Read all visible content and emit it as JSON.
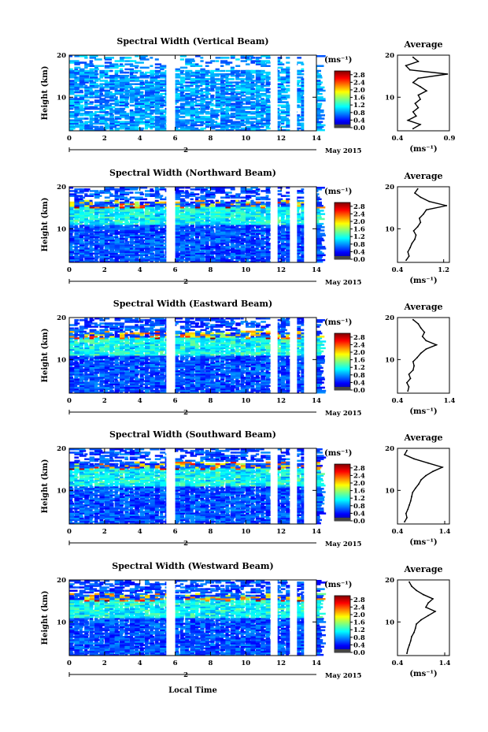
{
  "figure": {
    "xlabel": "Local Time",
    "date_label": "May 2015",
    "date_marker": "2"
  },
  "chart_data": [
    {
      "type": "heatmap",
      "title": "Spectral Width (Vertical Beam)",
      "xlabel": "Local Time",
      "ylabel": "Height (km)",
      "xlim": [
        0,
        14
      ],
      "ylim": [
        2,
        20
      ],
      "x_ticks": [
        0,
        2,
        4,
        6,
        8,
        10,
        12,
        14
      ],
      "y_ticks": [
        10,
        20
      ],
      "colorbar": {
        "label": "(ms⁻¹)",
        "ticks": [
          0.0,
          0.4,
          0.8,
          1.2,
          1.6,
          2.0,
          2.4,
          2.8
        ]
      },
      "data_gaps_hours": [
        [
          5.5,
          6.0
        ],
        [
          11.4,
          11.8
        ],
        [
          12.5,
          12.9
        ],
        [
          13.3,
          14.0
        ]
      ],
      "average_profile": {
        "title": "Average",
        "xlabel": "(ms⁻¹)",
        "xlim": [
          0.4,
          0.9
        ],
        "x_ticks": [
          0.4,
          0.9
        ],
        "y_ticks": [
          10,
          20
        ],
        "height": [
          2.5,
          3.5,
          4.5,
          5.5,
          6.5,
          7.5,
          8.5,
          9.5,
          10.5,
          11.5,
          12.5,
          13.5,
          14.5,
          15.5,
          16.5,
          17.5,
          18.5,
          19.5
        ],
        "width": [
          0.55,
          0.62,
          0.5,
          0.58,
          0.55,
          0.6,
          0.57,
          0.62,
          0.6,
          0.68,
          0.62,
          0.55,
          0.6,
          0.88,
          0.52,
          0.48,
          0.6,
          0.55
        ]
      }
    },
    {
      "type": "heatmap",
      "title": "Spectral Width (Northward Beam)",
      "xlabel": "Local Time",
      "ylabel": "Height (km)",
      "xlim": [
        0,
        14
      ],
      "ylim": [
        2,
        20
      ],
      "x_ticks": [
        0,
        2,
        4,
        6,
        8,
        10,
        12,
        14
      ],
      "y_ticks": [
        10,
        20
      ],
      "colorbar": {
        "label": "(ms⁻¹)",
        "ticks": [
          0.0,
          0.4,
          0.8,
          1.2,
          1.6,
          2.0,
          2.4,
          2.8
        ]
      },
      "data_gaps_hours": [
        [
          5.5,
          6.0
        ],
        [
          11.4,
          11.8
        ],
        [
          12.5,
          12.9
        ],
        [
          13.3,
          14.0
        ]
      ],
      "average_profile": {
        "title": "Average",
        "xlabel": "(ms⁻¹)",
        "xlim": [
          0.4,
          1.3
        ],
        "x_ticks": [
          0.4,
          1.2
        ],
        "y_ticks": [
          10,
          20
        ],
        "height": [
          2.5,
          3.5,
          4.5,
          5.5,
          6.5,
          7.5,
          8.5,
          9.5,
          10.5,
          11.5,
          12.5,
          13.5,
          14.5,
          15.5,
          16.5,
          17.5,
          18.5,
          19.5
        ],
        "width": [
          0.55,
          0.6,
          0.58,
          0.62,
          0.65,
          0.7,
          0.72,
          0.68,
          0.75,
          0.8,
          0.78,
          0.85,
          0.9,
          1.25,
          0.95,
          0.8,
          0.7,
          0.75
        ]
      }
    },
    {
      "type": "heatmap",
      "title": "Spectral Width (Eastward Beam)",
      "xlabel": "Local Time",
      "ylabel": "Height (km)",
      "xlim": [
        0,
        14
      ],
      "ylim": [
        2,
        20
      ],
      "x_ticks": [
        0,
        2,
        4,
        6,
        8,
        10,
        12,
        14
      ],
      "y_ticks": [
        10,
        20
      ],
      "colorbar": {
        "label": "(ms⁻¹)",
        "ticks": [
          0.0,
          0.4,
          0.8,
          1.2,
          1.6,
          2.0,
          2.4,
          2.8
        ]
      },
      "data_gaps_hours": [
        [
          5.5,
          6.0
        ],
        [
          11.4,
          11.8
        ],
        [
          12.5,
          12.9
        ],
        [
          13.3,
          14.0
        ]
      ],
      "average_profile": {
        "title": "Average",
        "xlabel": "(ms⁻¹)",
        "xlim": [
          0.4,
          1.4
        ],
        "x_ticks": [
          0.4,
          1.4
        ],
        "y_ticks": [
          10,
          20
        ],
        "height": [
          2.5,
          3.5,
          4.5,
          5.5,
          6.5,
          7.5,
          8.5,
          9.5,
          10.5,
          11.5,
          12.5,
          13.5,
          14.5,
          15.5,
          16.5,
          17.5,
          18.5,
          19.5
        ],
        "width": [
          0.6,
          0.62,
          0.58,
          0.65,
          0.62,
          0.7,
          0.72,
          0.7,
          0.78,
          0.85,
          0.95,
          1.15,
          0.95,
          0.88,
          0.92,
          0.85,
          0.8,
          0.7
        ]
      }
    },
    {
      "type": "heatmap",
      "title": "Spectral Width (Southward Beam)",
      "xlabel": "Local Time",
      "ylabel": "Height (km)",
      "xlim": [
        0,
        14
      ],
      "ylim": [
        2,
        20
      ],
      "x_ticks": [
        0,
        2,
        4,
        6,
        8,
        10,
        12,
        14
      ],
      "y_ticks": [
        10,
        20
      ],
      "colorbar": {
        "label": "(ms⁻¹)",
        "ticks": [
          0.0,
          0.4,
          0.8,
          1.2,
          1.6,
          2.0,
          2.4,
          2.8
        ]
      },
      "data_gaps_hours": [
        [
          5.5,
          6.0
        ],
        [
          11.4,
          11.8
        ],
        [
          12.5,
          12.9
        ],
        [
          13.3,
          14.0
        ]
      ],
      "average_profile": {
        "title": "Average",
        "xlabel": "(ms⁻¹)",
        "xlim": [
          0.4,
          1.5
        ],
        "x_ticks": [
          0.4,
          1.4
        ],
        "y_ticks": [
          10,
          20
        ],
        "height": [
          2.5,
          3.5,
          4.5,
          5.5,
          6.5,
          7.5,
          8.5,
          9.5,
          10.5,
          11.5,
          12.5,
          13.5,
          14.5,
          15.5,
          16.5,
          17.5,
          18.5,
          19.5
        ],
        "width": [
          0.55,
          0.6,
          0.58,
          0.62,
          0.65,
          0.68,
          0.7,
          0.72,
          0.78,
          0.85,
          0.9,
          1.0,
          1.15,
          1.35,
          1.05,
          0.75,
          0.55,
          0.6
        ]
      }
    },
    {
      "type": "heatmap",
      "title": "Spectral Width (Westward Beam)",
      "xlabel": "Local Time",
      "ylabel": "Height (km)",
      "xlim": [
        0,
        14
      ],
      "ylim": [
        2,
        20
      ],
      "x_ticks": [
        0,
        2,
        4,
        6,
        8,
        10,
        12,
        14
      ],
      "y_ticks": [
        10,
        20
      ],
      "colorbar": {
        "label": "(ms⁻¹)",
        "ticks": [
          0.0,
          0.4,
          0.8,
          1.2,
          1.6,
          2.0,
          2.4,
          2.8
        ]
      },
      "data_gaps_hours": [
        [
          5.5,
          6.0
        ],
        [
          11.4,
          11.8
        ],
        [
          12.5,
          12.9
        ],
        [
          13.3,
          14.0
        ]
      ],
      "average_profile": {
        "title": "Average",
        "xlabel": "(ms⁻¹)",
        "xlim": [
          0.4,
          1.5
        ],
        "x_ticks": [
          0.4,
          1.4
        ],
        "y_ticks": [
          10,
          20
        ],
        "height": [
          2.5,
          3.5,
          4.5,
          5.5,
          6.5,
          7.5,
          8.5,
          9.5,
          10.5,
          11.5,
          12.5,
          13.5,
          14.5,
          15.5,
          16.5,
          17.5,
          18.5,
          19.5
        ],
        "width": [
          0.6,
          0.62,
          0.65,
          0.68,
          0.7,
          0.75,
          0.78,
          0.8,
          0.9,
          1.05,
          1.2,
          1.0,
          1.05,
          1.15,
          0.95,
          0.8,
          0.7,
          0.65
        ]
      }
    }
  ]
}
